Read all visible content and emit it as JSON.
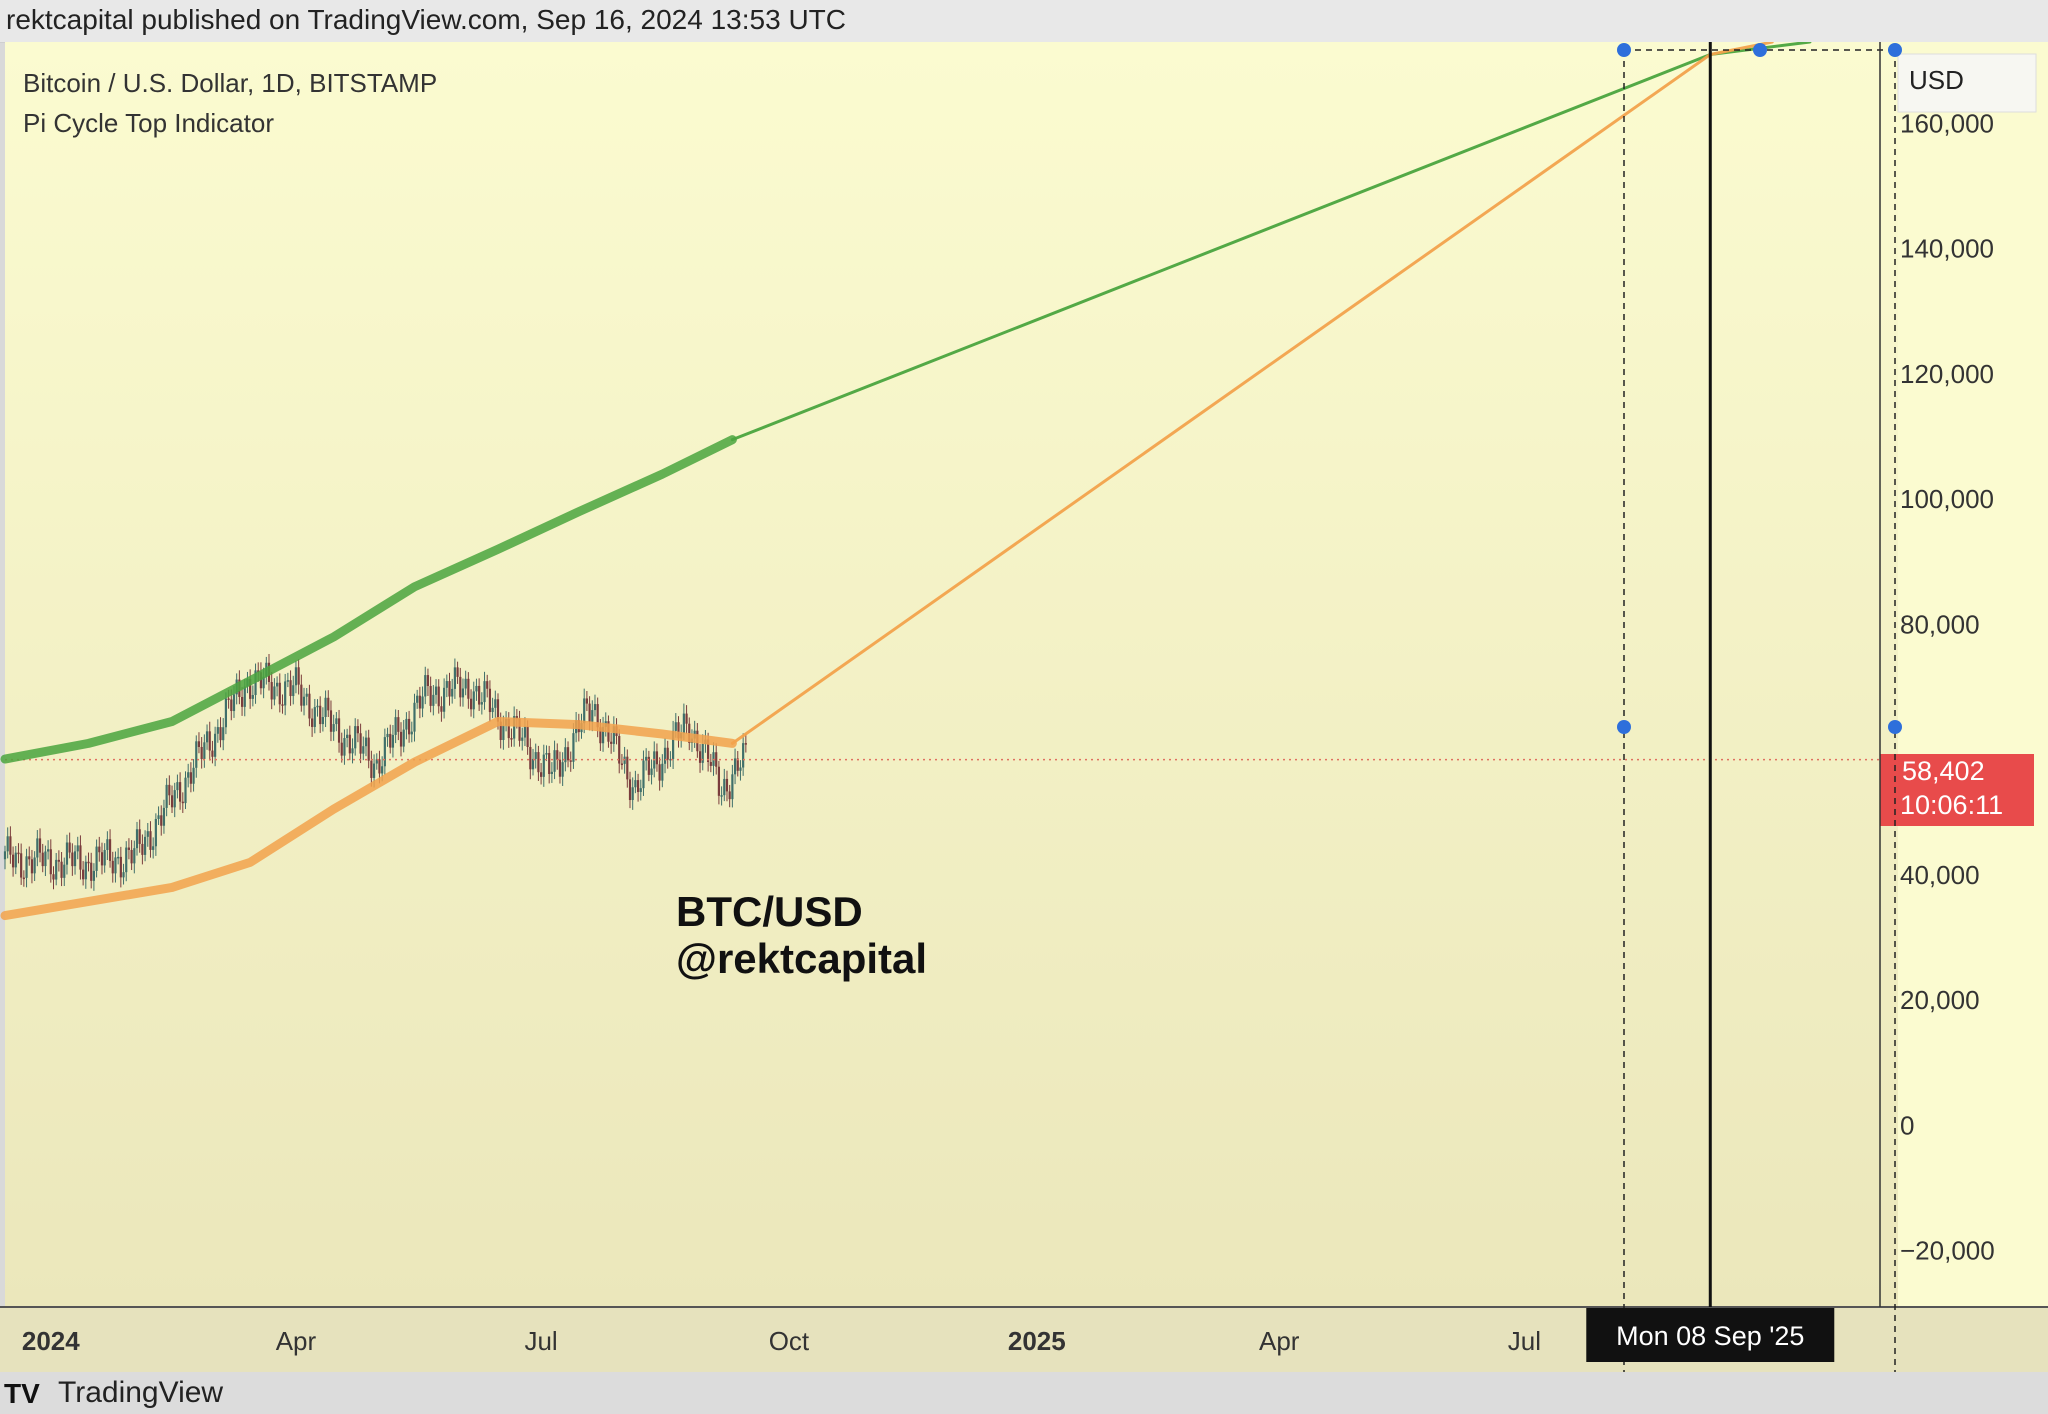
{
  "header": {
    "published": "rektcapital published on TradingView.com, Sep 16, 2024 13:53 UTC"
  },
  "legend": {
    "symbol": "Bitcoin / U.S. Dollar, 1D, BITSTAMP",
    "indicator": "Pi Cycle Top Indicator"
  },
  "watermark": {
    "line1": "BTC/USD",
    "line2": "@rektcapital"
  },
  "footer": {
    "brand": "TradingView",
    "logo": "TV"
  },
  "colors": {
    "background_top": "#fbfbd0",
    "background_bottom": "#ece8b8",
    "green": "#4aa43e",
    "orange": "#f2a24c",
    "price_badge": "#e84b4b"
  },
  "chart_data": {
    "type": "line",
    "price_axis_unit": "USD",
    "y_ticks": [
      "160,000",
      "140,000",
      "120,000",
      "100,000",
      "80,000",
      "40,000",
      "20,000",
      "0",
      "−20,000"
    ],
    "y_tick_values": [
      160000,
      140000,
      120000,
      100000,
      80000,
      40000,
      20000,
      0,
      -20000
    ],
    "ylim": [
      -29000,
      173000
    ],
    "x_ticks": [
      "2024",
      "Apr",
      "Jul",
      "Oct",
      "2025",
      "Apr",
      "Jul"
    ],
    "x_tick_dates": [
      "2024-01-01",
      "2024-04-01",
      "2024-07-01",
      "2024-10-01",
      "2025-01-01",
      "2025-04-01",
      "2025-07-01"
    ],
    "xlim": [
      "2023-12-15",
      "2025-11-10"
    ],
    "current_price": {
      "value": "58,402",
      "countdown": "10:06:11"
    },
    "crosshair_date_label": "Mon 08 Sep '25",
    "crosshair_date": "2025-09-08",
    "series": [
      {
        "name": "",
        "color": "#4aa43e",
        "x": [
          "2023-12-15",
          "2024-01-15",
          "2024-02-15",
          "2024-03-15",
          "2024-04-15",
          "2024-05-15",
          "2024-06-15",
          "2024-07-15",
          "2024-08-15",
          "2024-09-10"
        ],
        "y": [
          58500,
          61000,
          64500,
          71000,
          78000,
          86000,
          92000,
          98000,
          104000,
          109500
        ]
      },
      {
        "name": "",
        "color": "#4aa43e",
        "projection": true,
        "x": [
          "2024-09-10",
          "2025-09-08",
          "2025-10-15"
        ],
        "y": [
          109500,
          171000,
          173000
        ]
      },
      {
        "name": "",
        "color": "#f2a24c",
        "x": [
          "2023-12-15",
          "2024-02-15",
          "2024-03-15",
          "2024-04-15",
          "2024-05-15",
          "2024-06-15",
          "2024-07-15",
          "2024-08-15",
          "2024-09-10"
        ],
        "y": [
          33500,
          38000,
          42000,
          50500,
          58000,
          64500,
          64000,
          62500,
          61000
        ]
      },
      {
        "name": "",
        "color": "#f2a24c",
        "projection": true,
        "x": [
          "2024-09-10",
          "2025-09-08",
          "2025-10-01"
        ],
        "y": [
          61000,
          171000,
          173000
        ]
      }
    ],
    "candles_series": {
      "x": [
        "2023-12-15",
        "2024-01-15",
        "2024-02-01",
        "2024-02-15",
        "2024-03-01",
        "2024-03-14",
        "2024-04-01",
        "2024-04-15",
        "2024-05-01",
        "2024-05-20",
        "2024-06-05",
        "2024-06-25",
        "2024-07-05",
        "2024-07-20",
        "2024-08-05",
        "2024-08-25",
        "2024-09-06",
        "2024-09-15"
      ],
      "close": [
        42500,
        42000,
        43000,
        52000,
        62000,
        71000,
        69500,
        63500,
        58000,
        69000,
        70000,
        61000,
        56000,
        67000,
        54000,
        64000,
        54000,
        58402
      ]
    }
  }
}
